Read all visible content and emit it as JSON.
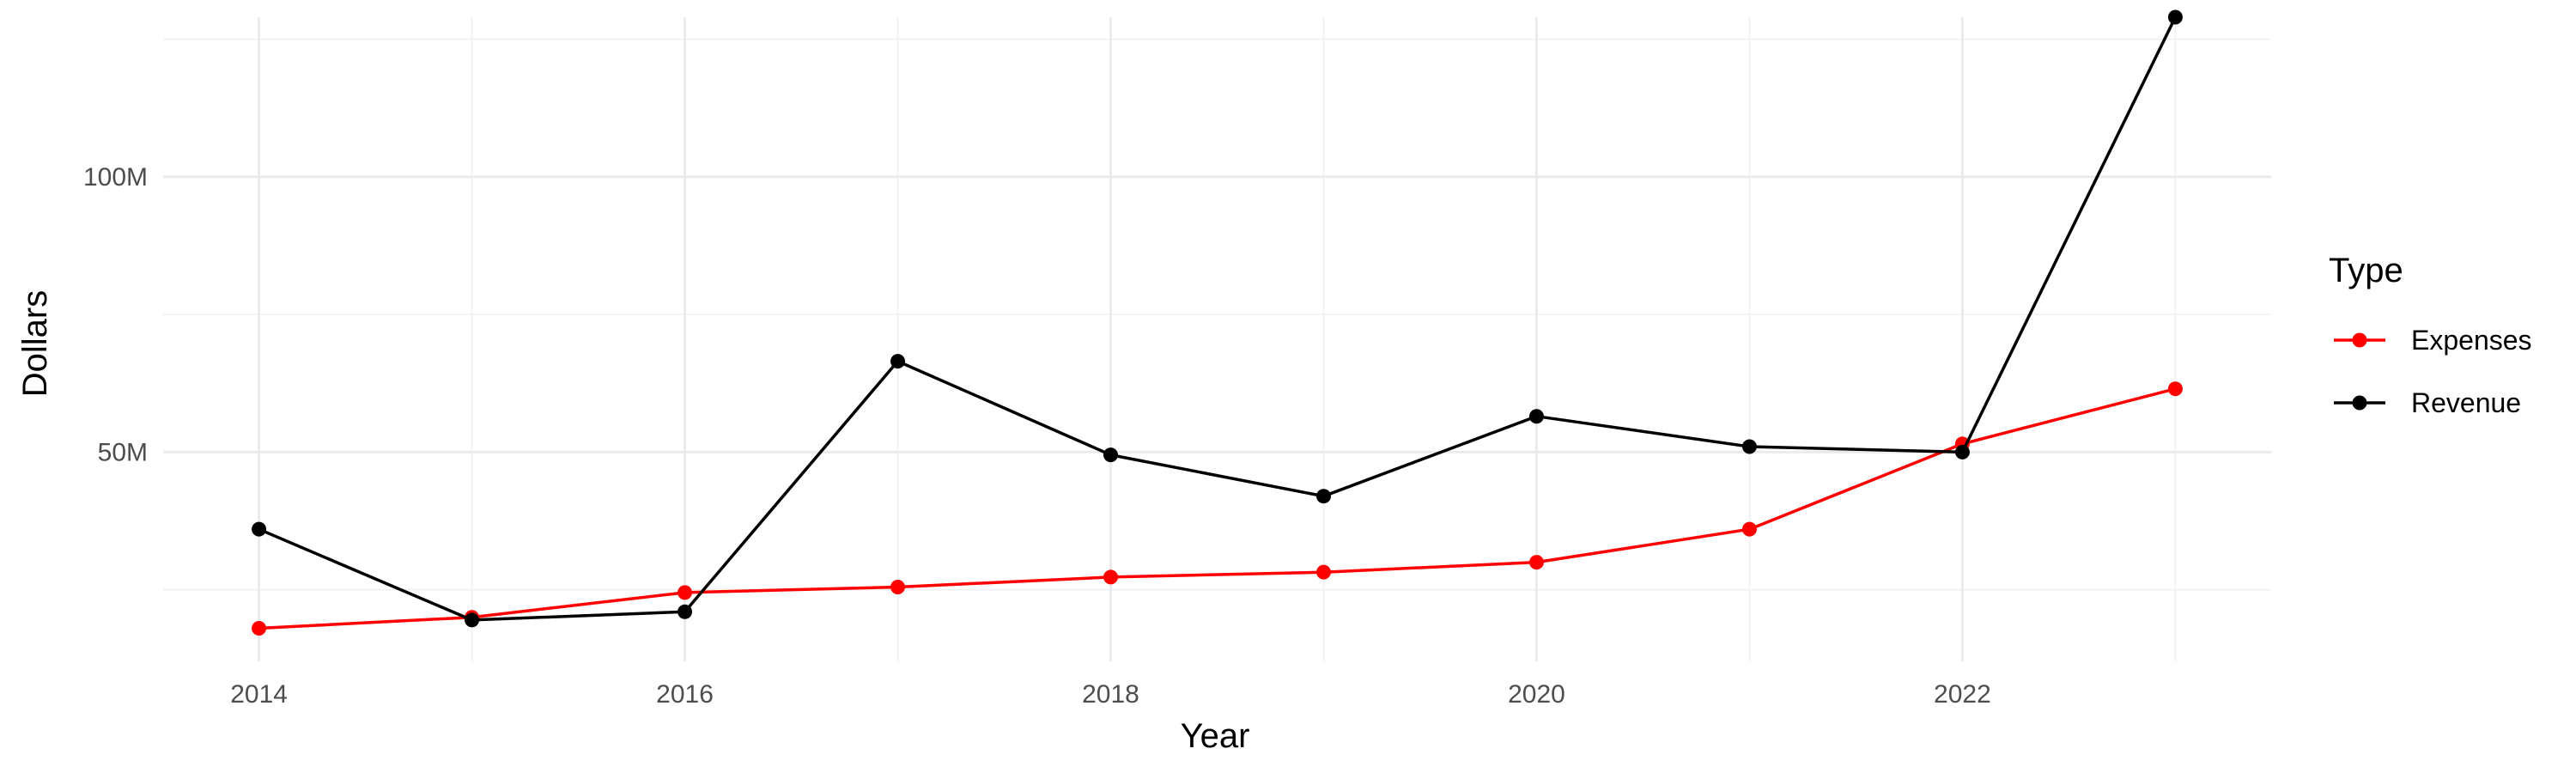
{
  "chart_data": {
    "type": "line",
    "title": "",
    "xlabel": "Year",
    "ylabel": "Dollars",
    "x": [
      2014,
      2015,
      2016,
      2017,
      2018,
      2019,
      2020,
      2021,
      2022,
      2023
    ],
    "xlim": [
      2013.55,
      2023.45
    ],
    "ylim": [
      12000000,
      129000000
    ],
    "x_ticks": [
      2014,
      2016,
      2018,
      2020,
      2022
    ],
    "x_tick_labels": [
      "2014",
      "2016",
      "2018",
      "2020",
      "2022"
    ],
    "y_ticks": [
      50000000,
      100000000
    ],
    "y_tick_labels": [
      "50M",
      "100M"
    ],
    "grid": true,
    "legend_title": "Type",
    "legend_position": "right",
    "series": [
      {
        "name": "Expenses",
        "color": "#ff0000",
        "values": [
          18000000,
          20000000,
          24500000,
          25500000,
          27300000,
          28200000,
          30000000,
          36000000,
          51500000,
          61500000
        ]
      },
      {
        "name": "Revenue",
        "color": "#000000",
        "values": [
          36000000,
          19500000,
          21000000,
          66500000,
          49500000,
          42000000,
          56500000,
          51000000,
          50000000,
          129000000
        ]
      }
    ]
  }
}
